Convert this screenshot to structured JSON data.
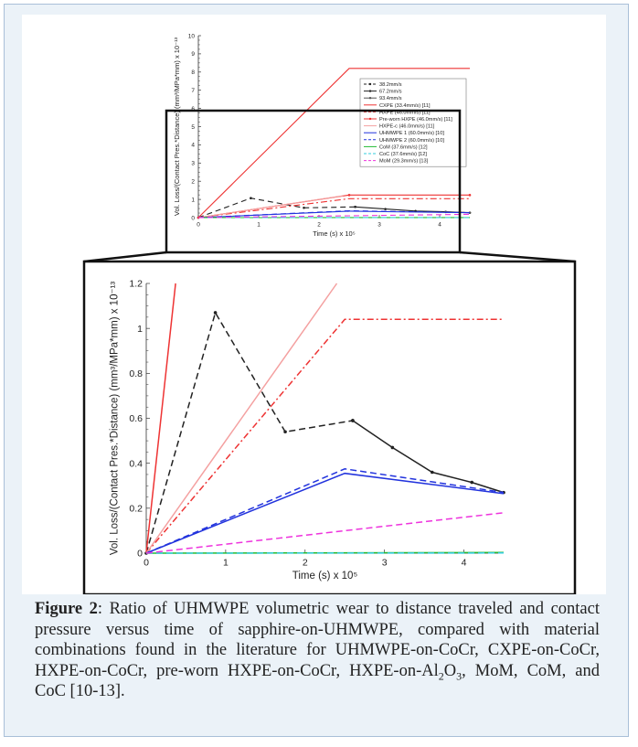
{
  "colors": {
    "panel_bg": "#ebf2f8",
    "panel_border": "#a9bfd8"
  },
  "caption": {
    "label": "Figure 2",
    "text_part1": ": Ratio of UHMWPE volumetric wear to distance traveled and contact pressure versus time of sapphire-on-UHMWPE, compared with material combinations found in the literature for UHMWPE-on-CoCr, CXPE-on-CoCr, HXPE-on-CoCr, pre-worn HXPE-on-CoCr, HXPE-on-Al",
    "sub1": "2",
    "text_part2": "O",
    "sub2": "3",
    "text_part3": ", MoM, CoM, and CoC [10-13]."
  },
  "chart_data": [
    {
      "type": "line",
      "panel": "overview",
      "ylabel": "Vol. Loss/(Contact Pres.*Distance) (mm³/MPa*mm) x 10⁻¹³",
      "xlabel": "Time (s) x 10⁵",
      "xlim": [
        0,
        4.5
      ],
      "ylim": [
        0,
        10
      ],
      "xticks": [
        "0",
        "1",
        "2",
        "3",
        "4"
      ],
      "yticks": [
        "0",
        "1",
        "2",
        "3",
        "4",
        "5",
        "6",
        "7",
        "8",
        "9",
        "10"
      ],
      "legend_position": "right",
      "series": [
        {
          "name": "38.2mm/s",
          "color": "#222222",
          "dash": "6,4",
          "marker": "dot",
          "x": [
            0,
            0.87,
            1.75,
            2.6
          ],
          "y": [
            0,
            1.07,
            0.54,
            0.59
          ]
        },
        {
          "name": "67.2mm/s",
          "color": "#222222",
          "dash": "",
          "marker": "dot",
          "x": [
            2.6,
            3.1,
            3.6,
            4.1,
            4.5
          ],
          "y": [
            0.59,
            0.47,
            0.36,
            0.32,
            0.27
          ]
        },
        {
          "name": "93.4mm/s",
          "color": "#555555",
          "dash": "",
          "marker": "dot",
          "x": [
            4.1,
            4.5
          ],
          "y": [
            0.31,
            0.27
          ]
        },
        {
          "name": "CXPE (33.4mm/s) [11]",
          "color": "#ee3333",
          "dash": "",
          "marker": "",
          "x": [
            0,
            2.5,
            4.5
          ],
          "y": [
            0,
            8.2,
            8.2
          ]
        },
        {
          "name": "HXPE (46.0mm/s) [11]",
          "color": "#ee3333",
          "dash": "7,3,2,3",
          "marker": "",
          "x": [
            0,
            2.5,
            4.5
          ],
          "y": [
            0,
            1.04,
            1.04
          ]
        },
        {
          "name": "Pre-worn HXPE (46.0mm/s) [11]",
          "color": "#ee3333",
          "dash": "",
          "marker": "dot",
          "x": [
            0,
            2.5,
            4.5
          ],
          "y": [
            0,
            1.24,
            1.24
          ]
        },
        {
          "name": "HXPE-c (46.0mm/s) [11]",
          "color": "#f4a0a0",
          "dash": "",
          "marker": "",
          "x": [
            0,
            2.4
          ],
          "y": [
            0,
            1.2
          ]
        },
        {
          "name": "UHMWPE 1 (60.0mm/s) [10]",
          "color": "#2233dd",
          "dash": "",
          "marker": "",
          "x": [
            0,
            2.5,
            4.5
          ],
          "y": [
            0,
            0.355,
            0.265
          ]
        },
        {
          "name": "UHMWPE 2 (60.0mm/s) [10]",
          "color": "#2233dd",
          "dash": "6,4",
          "marker": "",
          "x": [
            0,
            2.5,
            4.5
          ],
          "y": [
            0,
            0.375,
            0.27
          ]
        },
        {
          "name": "CoM (37.6mm/s) [12]",
          "color": "#22bb33",
          "dash": "",
          "marker": "",
          "x": [
            0,
            4.5
          ],
          "y": [
            0,
            0.004
          ]
        },
        {
          "name": "CoC (37.6mm/s) [12]",
          "color": "#33ccdd",
          "dash": "6,4",
          "marker": "",
          "x": [
            0,
            4.5
          ],
          "y": [
            0,
            0.002
          ]
        },
        {
          "name": "MoM (29.3mm/s) [13]",
          "color": "#ee33dd",
          "dash": "6,4",
          "marker": "",
          "x": [
            0,
            4.5
          ],
          "y": [
            0,
            0.18
          ]
        }
      ]
    },
    {
      "type": "line",
      "panel": "zoom",
      "ylabel": "Vol. Loss/(Contact Pres.*Distance) (mm³/MPa*mm) x 10⁻¹³",
      "xlabel": "Time (s) x 10⁵",
      "xlim": [
        0,
        4.5
      ],
      "ylim": [
        0,
        1.2
      ],
      "xticks": [
        "0",
        "1",
        "2",
        "3",
        "4"
      ],
      "yticks": [
        "0",
        "0.2",
        "0.4",
        "0.6",
        "0.8",
        "1",
        "1.2"
      ],
      "series": [
        {
          "name": "38.2mm/s",
          "color": "#222222",
          "dash": "7,4",
          "marker": "dot",
          "x": [
            0,
            0.87,
            1.75,
            2.6
          ],
          "y": [
            0,
            1.07,
            0.54,
            0.59
          ]
        },
        {
          "name": "67.2mm/s",
          "color": "#222222",
          "dash": "",
          "marker": "dot",
          "x": [
            2.6,
            3.1,
            3.6,
            4.1,
            4.5
          ],
          "y": [
            0.59,
            0.47,
            0.36,
            0.315,
            0.27
          ]
        },
        {
          "name": "CXPE (33.4mm/s) [11]",
          "color": "#ee3333",
          "dash": "",
          "marker": "",
          "x": [
            0,
            0.37
          ],
          "y": [
            0,
            1.2
          ]
        },
        {
          "name": "HXPE (46.0mm/s) [11]",
          "color": "#ee3333",
          "dash": "7,3,2,3",
          "marker": "",
          "x": [
            0,
            2.5,
            4.5
          ],
          "y": [
            0,
            1.04,
            1.04
          ]
        },
        {
          "name": "HXPE-c (46.0mm/s) [11]",
          "color": "#f4a0a0",
          "dash": "",
          "marker": "",
          "x": [
            0,
            2.4
          ],
          "y": [
            0,
            1.2
          ]
        },
        {
          "name": "UHMWPE 1 (60.0mm/s) [10]",
          "color": "#2233dd",
          "dash": "",
          "marker": "",
          "x": [
            0,
            2.5,
            4.5
          ],
          "y": [
            0,
            0.355,
            0.265
          ]
        },
        {
          "name": "UHMWPE 2 (60.0mm/s) [10]",
          "color": "#2233dd",
          "dash": "7,4",
          "marker": "",
          "x": [
            0,
            2.5,
            4.5
          ],
          "y": [
            0,
            0.375,
            0.27
          ]
        },
        {
          "name": "CoM (37.6mm/s) [12]",
          "color": "#22bb33",
          "dash": "",
          "marker": "",
          "x": [
            0,
            4.5
          ],
          "y": [
            0,
            0.003
          ]
        },
        {
          "name": "CoC (37.6mm/s) [12]",
          "color": "#33ccdd",
          "dash": "7,4",
          "marker": "",
          "x": [
            0,
            4.5
          ],
          "y": [
            0,
            0.001
          ]
        },
        {
          "name": "MoM (29.3mm/s) [13]",
          "color": "#ee33dd",
          "dash": "7,4",
          "marker": "",
          "x": [
            0,
            4.5
          ],
          "y": [
            0,
            0.18
          ]
        }
      ]
    }
  ]
}
